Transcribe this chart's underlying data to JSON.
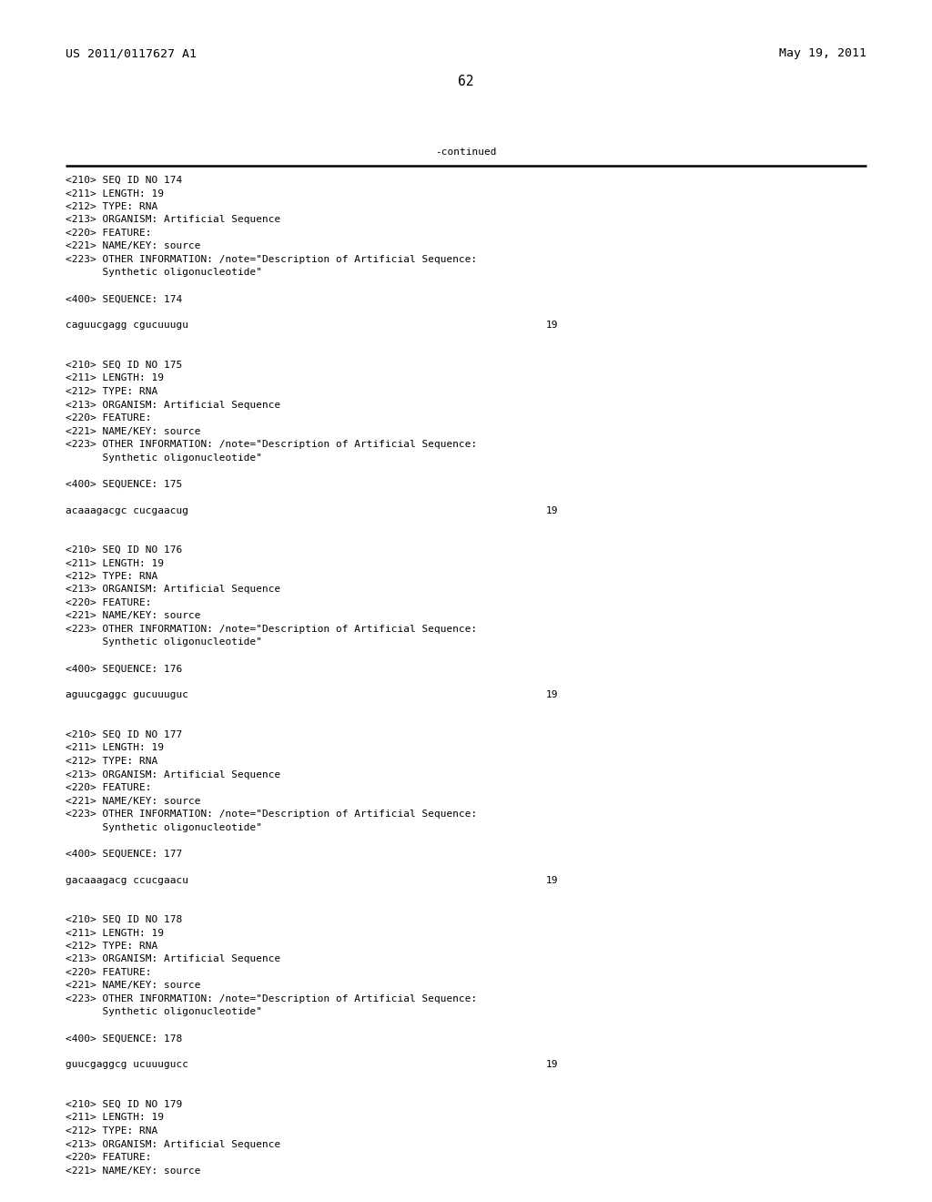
{
  "header_left": "US 2011/0117627 A1",
  "header_right": "May 19, 2011",
  "page_number": "62",
  "continued_text": "-continued",
  "background_color": "#ffffff",
  "text_color": "#000000",
  "font_size_header": 9.5,
  "font_size_body": 8.0,
  "font_size_page": 10.5,
  "content_blocks": [
    {
      "meta_lines": [
        "<210> SEQ ID NO 174",
        "<211> LENGTH: 19",
        "<212> TYPE: RNA",
        "<213> ORGANISM: Artificial Sequence",
        "<220> FEATURE:",
        "<221> NAME/KEY: source",
        "<223> OTHER INFORMATION: /note=\"Description of Artificial Sequence:",
        "      Synthetic oligonucleotide\""
      ],
      "seq_label": "<400> SEQUENCE: 174",
      "sequence": "caguucgagg cgucuuugu",
      "seq_number": "19"
    },
    {
      "meta_lines": [
        "<210> SEQ ID NO 175",
        "<211> LENGTH: 19",
        "<212> TYPE: RNA",
        "<213> ORGANISM: Artificial Sequence",
        "<220> FEATURE:",
        "<221> NAME/KEY: source",
        "<223> OTHER INFORMATION: /note=\"Description of Artificial Sequence:",
        "      Synthetic oligonucleotide\""
      ],
      "seq_label": "<400> SEQUENCE: 175",
      "sequence": "acaaagacgc cucgaacug",
      "seq_number": "19"
    },
    {
      "meta_lines": [
        "<210> SEQ ID NO 176",
        "<211> LENGTH: 19",
        "<212> TYPE: RNA",
        "<213> ORGANISM: Artificial Sequence",
        "<220> FEATURE:",
        "<221> NAME/KEY: source",
        "<223> OTHER INFORMATION: /note=\"Description of Artificial Sequence:",
        "      Synthetic oligonucleotide\""
      ],
      "seq_label": "<400> SEQUENCE: 176",
      "sequence": "aguucgaggc gucuuuguc",
      "seq_number": "19"
    },
    {
      "meta_lines": [
        "<210> SEQ ID NO 177",
        "<211> LENGTH: 19",
        "<212> TYPE: RNA",
        "<213> ORGANISM: Artificial Sequence",
        "<220> FEATURE:",
        "<221> NAME/KEY: source",
        "<223> OTHER INFORMATION: /note=\"Description of Artificial Sequence:",
        "      Synthetic oligonucleotide\""
      ],
      "seq_label": "<400> SEQUENCE: 177",
      "sequence": "gacaaagacg ccucgaacu",
      "seq_number": "19"
    },
    {
      "meta_lines": [
        "<210> SEQ ID NO 178",
        "<211> LENGTH: 19",
        "<212> TYPE: RNA",
        "<213> ORGANISM: Artificial Sequence",
        "<220> FEATURE:",
        "<221> NAME/KEY: source",
        "<223> OTHER INFORMATION: /note=\"Description of Artificial Sequence:",
        "      Synthetic oligonucleotide\""
      ],
      "seq_label": "<400> SEQUENCE: 178",
      "sequence": "guucgaggcg ucuuugucc",
      "seq_number": "19"
    },
    {
      "meta_lines": [
        "<210> SEQ ID NO 179",
        "<211> LENGTH: 19",
        "<212> TYPE: RNA",
        "<213> ORGANISM: Artificial Sequence",
        "<220> FEATURE:",
        "<221> NAME/KEY: source"
      ],
      "seq_label": "",
      "sequence": "",
      "seq_number": ""
    }
  ]
}
